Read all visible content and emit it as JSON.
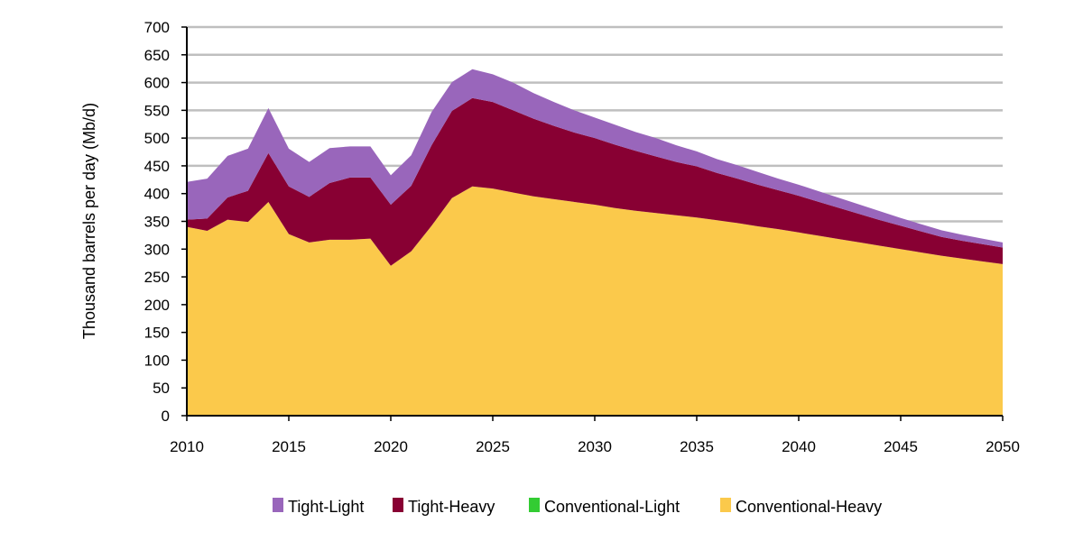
{
  "chart_data": {
    "type": "area",
    "stacked": true,
    "title": "",
    "xlabel": "",
    "ylabel": "Thousand barrels per day (Mb/d)",
    "xlim": [
      2010,
      2050
    ],
    "ylim": [
      0,
      700
    ],
    "x_ticks": [
      "2010",
      "2015",
      "2020",
      "2025",
      "2030",
      "2035",
      "2040",
      "2045",
      "2050"
    ],
    "y_ticks": [
      "0",
      "50",
      "100",
      "150",
      "200",
      "250",
      "300",
      "350",
      "400",
      "450",
      "500",
      "550",
      "600",
      "650",
      "700"
    ],
    "grid": true,
    "legend_position": "bottom",
    "x": [
      2010,
      2011,
      2012,
      2013,
      2014,
      2015,
      2016,
      2017,
      2018,
      2019,
      2020,
      2021,
      2022,
      2023,
      2024,
      2025,
      2026,
      2027,
      2028,
      2029,
      2030,
      2031,
      2032,
      2033,
      2034,
      2035,
      2036,
      2037,
      2038,
      2039,
      2040,
      2041,
      2042,
      2043,
      2044,
      2045,
      2046,
      2047,
      2048,
      2049,
      2050
    ],
    "series": [
      {
        "name": "Conventional-Heavy",
        "color": "#fbc94b",
        "values": [
          340,
          333,
          353,
          349,
          385,
          327,
          312,
          317,
          317,
          319,
          270,
          296,
          342,
          392,
          413,
          409,
          402,
          395,
          390,
          385,
          380,
          374,
          369,
          365,
          361,
          357,
          352,
          347,
          341,
          336,
          330,
          324,
          318,
          312,
          306,
          300,
          294,
          288,
          283,
          278,
          273
        ]
      },
      {
        "name": "Conventional-Light",
        "color": "#33cc33",
        "values": [
          0,
          0,
          0,
          0,
          0,
          0,
          0,
          0,
          0,
          0,
          0,
          0,
          0,
          0,
          0,
          0,
          0,
          0,
          0,
          0,
          0,
          0,
          0,
          0,
          0,
          0,
          0,
          0,
          0,
          0,
          0,
          0,
          0,
          0,
          0,
          0,
          0,
          0,
          0,
          0,
          0
        ]
      },
      {
        "name": "Tight-Heavy",
        "color": "#880033",
        "values": [
          13,
          22,
          40,
          56,
          88,
          86,
          82,
          102,
          112,
          110,
          110,
          118,
          145,
          157,
          159,
          156,
          148,
          140,
          132,
          125,
          120,
          114,
          108,
          102,
          96,
          92,
          85,
          80,
          75,
          70,
          66,
          61,
          56,
          51,
          46,
          42,
          38,
          34,
          32,
          31,
          30
        ]
      },
      {
        "name": "Tight-Light",
        "color": "#9966bb",
        "values": [
          68,
          72,
          75,
          76,
          81,
          68,
          63,
          63,
          56,
          56,
          53,
          55,
          60,
          52,
          52,
          50,
          50,
          46,
          43,
          40,
          37,
          36,
          34,
          33,
          30,
          27,
          25,
          24,
          23,
          21,
          20,
          19,
          18,
          17,
          16,
          14,
          13,
          12,
          11,
          10,
          9
        ]
      }
    ]
  }
}
